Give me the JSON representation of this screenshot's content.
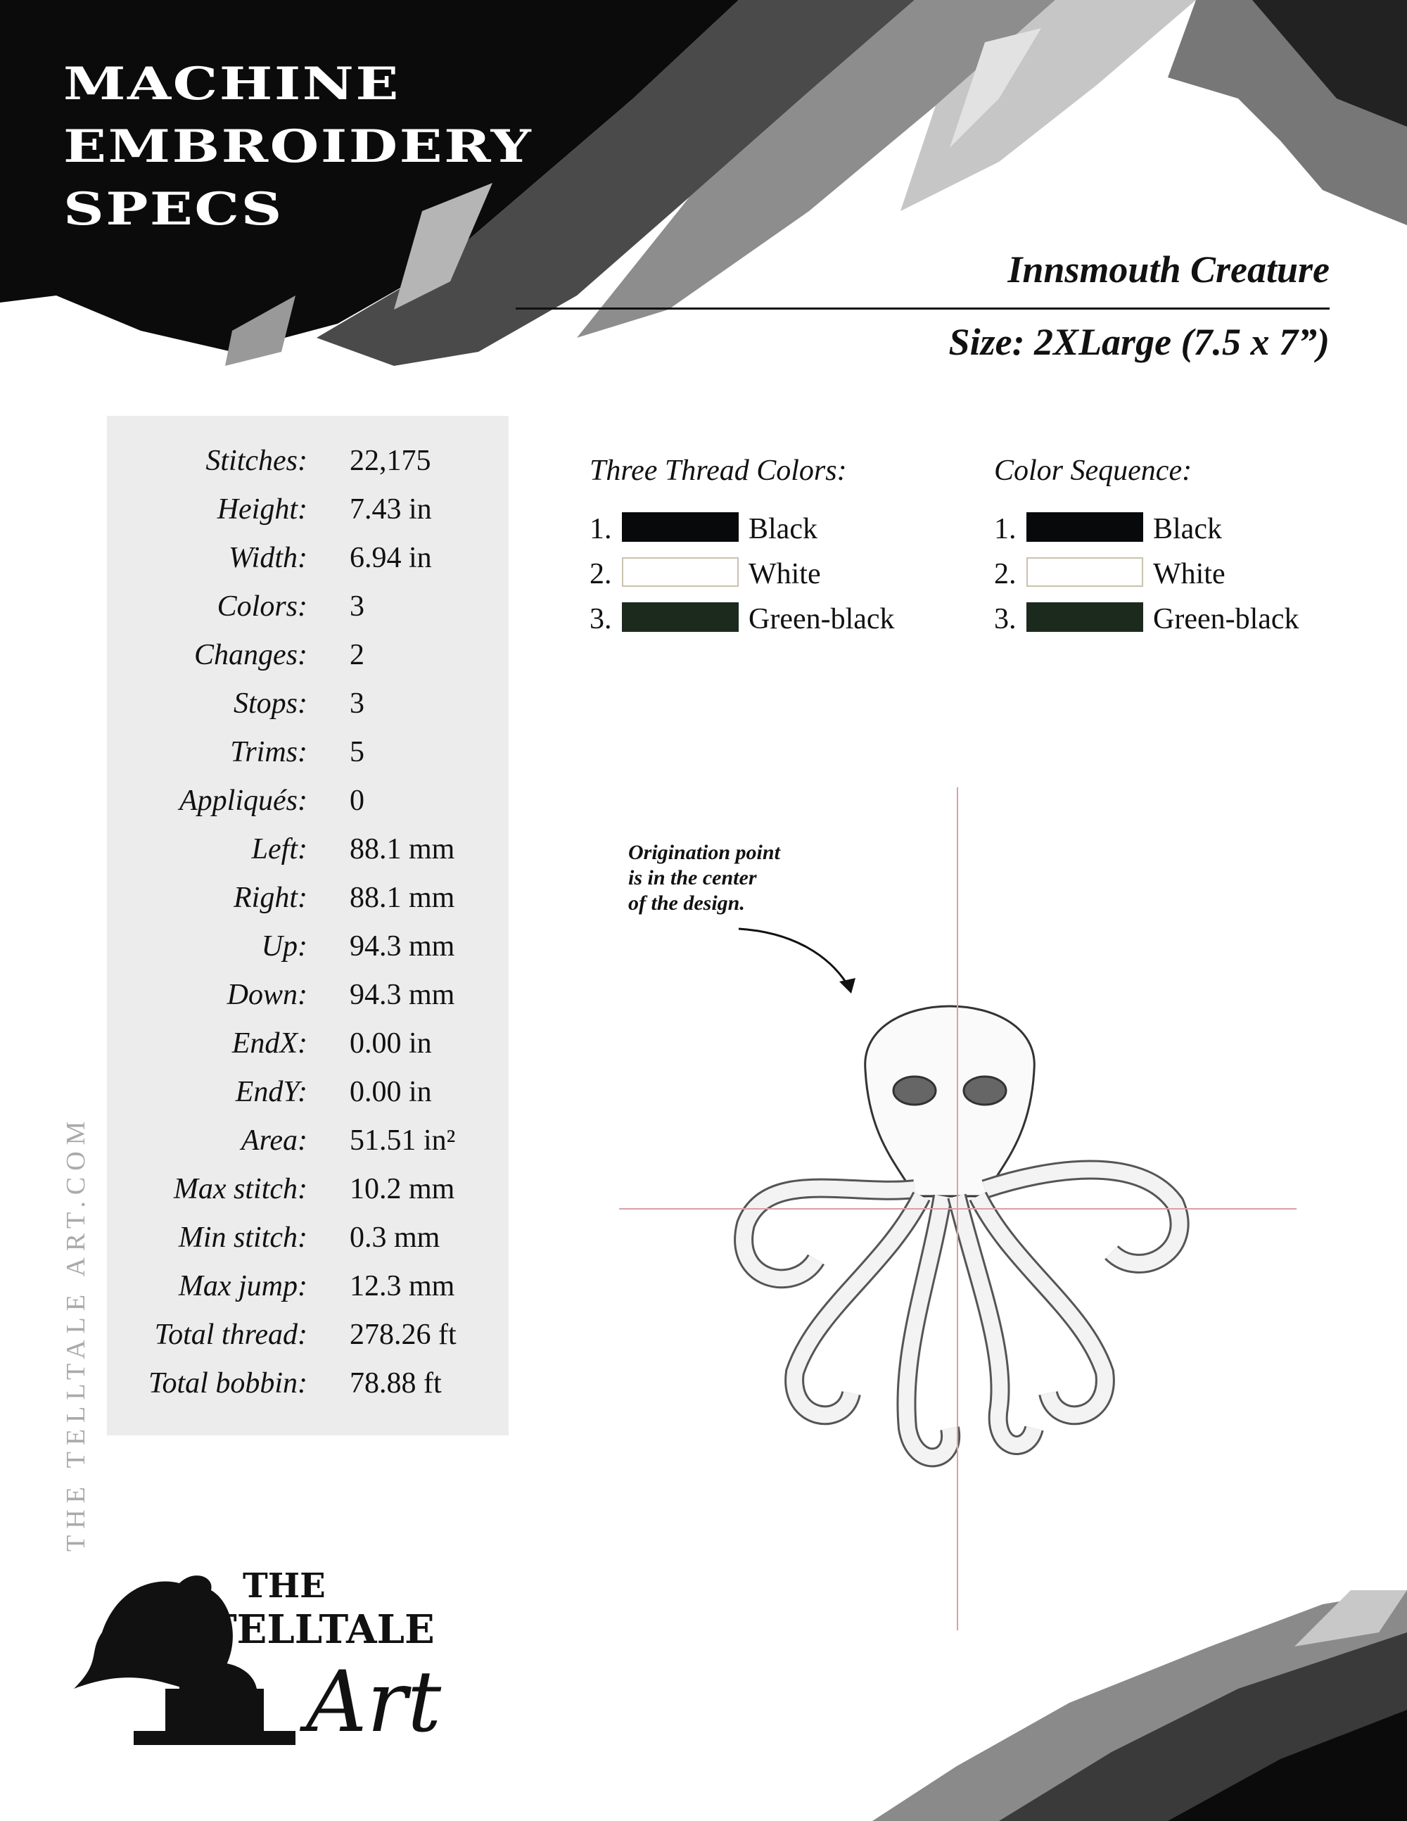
{
  "header": {
    "title_lines": [
      "MACHINE",
      "EMBROIDERY",
      "SPECS"
    ],
    "design_name": "Innsmouth Creature",
    "size": "Size: 2XLarge (7.5 x 7”)"
  },
  "specs": [
    {
      "label": "Stitches:",
      "value": "22,175"
    },
    {
      "label": "Height:",
      "value": "7.43 in"
    },
    {
      "label": "Width:",
      "value": "6.94 in"
    },
    {
      "label": "Colors:",
      "value": "3"
    },
    {
      "label": "Changes:",
      "value": "2"
    },
    {
      "label": "Stops:",
      "value": "3"
    },
    {
      "label": "Trims:",
      "value": "5"
    },
    {
      "label": "Appliqués:",
      "value": "0"
    },
    {
      "label": "Left:",
      "value": "88.1 mm"
    },
    {
      "label": "Right:",
      "value": "88.1 mm"
    },
    {
      "label": "Up:",
      "value": "94.3 mm"
    },
    {
      "label": "Down:",
      "value": "94.3 mm"
    },
    {
      "label": "EndX:",
      "value": "0.00 in"
    },
    {
      "label": "EndY:",
      "value": "0.00 in"
    },
    {
      "label": "Area:",
      "value": "51.51 in²"
    },
    {
      "label": "Max stitch:",
      "value": "10.2 mm"
    },
    {
      "label": "Min stitch:",
      "value": "0.3 mm"
    },
    {
      "label": "Max jump:",
      "value": "12.3 mm"
    },
    {
      "label": "Total thread:",
      "value": "278.26 ft"
    },
    {
      "label": "Total bobbin:",
      "value": "78.88 ft"
    }
  ],
  "thread_colors": {
    "heading": "Three Thread Colors:",
    "items": [
      {
        "num": "1.",
        "name": "Black",
        "color": "#08090b"
      },
      {
        "num": "2.",
        "name": "White",
        "color": "#ffffff"
      },
      {
        "num": "3.",
        "name": "Green-black",
        "color": "#1c2a1e"
      }
    ]
  },
  "color_sequence": {
    "heading": "Color Sequence:",
    "items": [
      {
        "num": "1.",
        "name": "Black",
        "color": "#08090b"
      },
      {
        "num": "2.",
        "name": "White",
        "color": "#ffffff"
      },
      {
        "num": "3.",
        "name": "Green-black",
        "color": "#1c2a1e"
      }
    ]
  },
  "annotation": [
    "Origination point",
    "is in the center",
    "of the design."
  ],
  "side_text": "THE TELLTALE ART.COM",
  "logo": {
    "text": "THE TELLTALE Art"
  },
  "colors": {
    "crosshair": "#d9a0a4",
    "panel": "#ececed",
    "swatch_border": "#c9c2ad"
  }
}
